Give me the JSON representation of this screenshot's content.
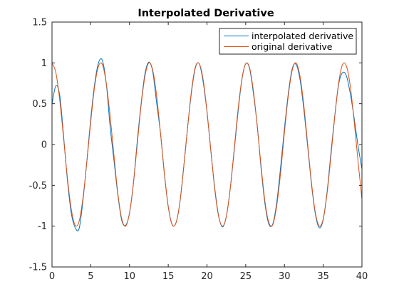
{
  "chart_data": {
    "type": "line",
    "title": "Interpolated Derivative",
    "xlabel": "",
    "ylabel": "",
    "xlim": [
      0,
      40
    ],
    "ylim": [
      -1.5,
      1.5
    ],
    "x_ticks": [
      0,
      5,
      10,
      15,
      20,
      25,
      30,
      35,
      40
    ],
    "y_ticks": [
      -1.5,
      -1,
      -0.5,
      0,
      0.5,
      1,
      1.5
    ],
    "grid": false,
    "legend_position": "top-right",
    "series": [
      {
        "name": "interpolated derivative",
        "color": "#0072BD",
        "x": [
          0,
          0.5,
          1,
          1.5,
          2,
          2.5,
          3,
          3.5,
          4,
          4.5,
          5,
          5.5,
          6,
          6.5,
          7,
          7.5,
          8,
          8.5,
          9,
          9.5,
          10,
          10.5,
          11,
          11.5,
          12,
          12.5,
          13,
          13.5,
          14,
          14.5,
          15,
          15.5,
          16,
          16.5,
          17,
          17.5,
          18,
          18.5,
          19,
          19.5,
          20,
          20.5,
          21,
          21.5,
          22,
          22.5,
          23,
          23.5,
          24,
          24.5,
          25,
          25.5,
          26,
          26.5,
          27,
          27.5,
          28,
          28.5,
          29,
          29.5,
          30,
          30.5,
          31,
          31.5,
          32,
          32.5,
          33,
          33.5,
          34,
          34.5,
          35,
          35.5,
          36,
          36.5,
          37,
          37.5,
          38,
          38.5,
          39,
          39.5,
          40
        ],
        "y": [
          0.5,
          0.72,
          0.6,
          0.1,
          -0.45,
          -0.85,
          -1.02,
          -1.03,
          -0.68,
          -0.2,
          0.32,
          0.74,
          1.0,
          1.03,
          0.75,
          0.22,
          -0.2,
          -0.62,
          -0.93,
          -0.99,
          -0.84,
          -0.48,
          0.04,
          0.5,
          0.87,
          1.01,
          0.89,
          0.51,
          0.14,
          -0.36,
          -0.76,
          -0.98,
          -0.96,
          -0.71,
          -0.27,
          0.21,
          0.64,
          0.94,
          0.99,
          0.77,
          0.4,
          -0.08,
          -0.53,
          -0.87,
          -1.01,
          -0.88,
          -0.54,
          -0.09,
          0.39,
          0.79,
          0.99,
          0.93,
          0.62,
          0.22,
          -0.31,
          -0.74,
          -0.98,
          -0.97,
          -0.71,
          -0.28,
          0.2,
          0.63,
          0.93,
          0.98,
          0.8,
          0.43,
          -0.03,
          -0.5,
          -0.86,
          -1.02,
          -0.92,
          -0.58,
          -0.1,
          0.36,
          0.74,
          0.88,
          0.84,
          0.62,
          0.32,
          -0.02,
          -0.3
        ]
      },
      {
        "name": "original derivative",
        "color": "#D95319",
        "x": [
          0,
          0.5,
          1,
          1.5,
          2,
          2.5,
          3,
          3.5,
          4,
          4.5,
          5,
          5.5,
          6,
          6.5,
          7,
          7.5,
          8,
          8.5,
          9,
          9.5,
          10,
          10.5,
          11,
          11.5,
          12,
          12.5,
          13,
          13.5,
          14,
          14.5,
          15,
          15.5,
          16,
          16.5,
          17,
          17.5,
          18,
          18.5,
          19,
          19.5,
          20,
          20.5,
          21,
          21.5,
          22,
          22.5,
          23,
          23.5,
          24,
          24.5,
          25,
          25.5,
          26,
          26.5,
          27,
          27.5,
          28,
          28.5,
          29,
          29.5,
          30,
          30.5,
          31,
          31.5,
          32,
          32.5,
          33,
          33.5,
          34,
          34.5,
          35,
          35.5,
          36,
          36.5,
          37,
          37.5,
          38,
          38.5,
          39,
          39.5,
          40
        ],
        "y": [
          1.0,
          0.88,
          0.54,
          0.07,
          -0.42,
          -0.8,
          -0.99,
          -0.94,
          -0.65,
          -0.21,
          0.28,
          0.71,
          0.96,
          0.98,
          0.75,
          0.35,
          -0.14,
          -0.6,
          -0.91,
          -1.0,
          -0.84,
          -0.48,
          0.0,
          0.48,
          0.84,
          1.0,
          0.91,
          0.6,
          0.14,
          -0.35,
          -0.76,
          -0.98,
          -0.96,
          -0.71,
          -0.28,
          0.21,
          0.66,
          0.95,
          0.99,
          0.8,
          0.41,
          -0.07,
          -0.55,
          -0.88,
          -1.0,
          -0.88,
          -0.54,
          -0.07,
          0.42,
          0.8,
          0.99,
          0.94,
          0.65,
          0.21,
          -0.28,
          -0.71,
          -0.96,
          -0.98,
          -0.75,
          -0.35,
          0.15,
          0.6,
          0.91,
          1.0,
          0.84,
          0.48,
          0.0,
          -0.48,
          -0.84,
          -1.0,
          -0.91,
          -0.6,
          -0.14,
          0.35,
          0.76,
          0.98,
          0.96,
          0.71,
          0.28,
          -0.21,
          -0.67
        ]
      }
    ]
  }
}
